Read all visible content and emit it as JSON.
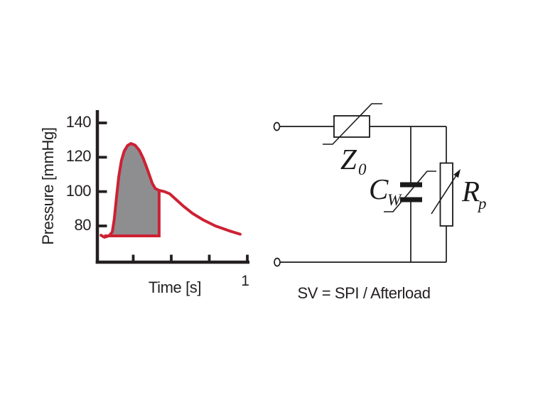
{
  "colors": {
    "curve_red": "#cd2134",
    "shade_gray": "#8e8e90",
    "axis_black": "#231f20",
    "circuit_black": "#1a1a1a",
    "background": "#ffffff"
  },
  "chart": {
    "ylabel": "Pressure [mmHg]",
    "xlabel": "Time [s]",
    "ytick_labels": [
      "140",
      "120",
      "100",
      "80"
    ],
    "x_end_tick_label": "1"
  },
  "chart_data": {
    "type": "line",
    "xlabel": "Time [s]",
    "ylabel": "Pressure [mmHg]",
    "xlim": [
      0,
      1
    ],
    "ylim": [
      62,
      146
    ],
    "yticks": [
      80,
      100,
      120,
      140
    ],
    "xticks": [
      0.25,
      0.5,
      0.75,
      1
    ],
    "grid": false,
    "series": [
      {
        "name": "arterial-pressure-waveform",
        "color": "#cd2134",
        "x": [
          0.038,
          0.06,
          0.09,
          0.112,
          0.125,
          0.14,
          0.155,
          0.172,
          0.19,
          0.212,
          0.235,
          0.262,
          0.29,
          0.315,
          0.345,
          0.375,
          0.395,
          0.42,
          0.455,
          0.49,
          0.53,
          0.58,
          0.64,
          0.71,
          0.79,
          0.88,
          0.953
        ],
        "y": [
          74.6,
          73.4,
          74.2,
          76.5,
          84,
          97,
          109,
          118,
          123.5,
          126.8,
          128,
          127,
          124,
          119.5,
          112.5,
          104.8,
          101.8,
          100.7,
          100,
          98.7,
          95.5,
          91.5,
          87.3,
          83.5,
          80,
          77.2,
          75.2
        ]
      }
    ],
    "shaded_region": {
      "name": "systolic-pressure-integral",
      "t_start": 0.06,
      "t_end": 0.42,
      "baseline_mmHg": 74.2,
      "top_mmHg_at_end": 100.7,
      "fill": "#8e8e90",
      "border": "#cd2134"
    }
  },
  "circuit": {
    "labels": {
      "z0": {
        "main": "Z",
        "sub": "0"
      },
      "cw": {
        "main": "C",
        "sub": "W"
      },
      "rp": {
        "main": "R",
        "sub": "p"
      }
    },
    "caption": "SV = SPI / Afterload"
  }
}
